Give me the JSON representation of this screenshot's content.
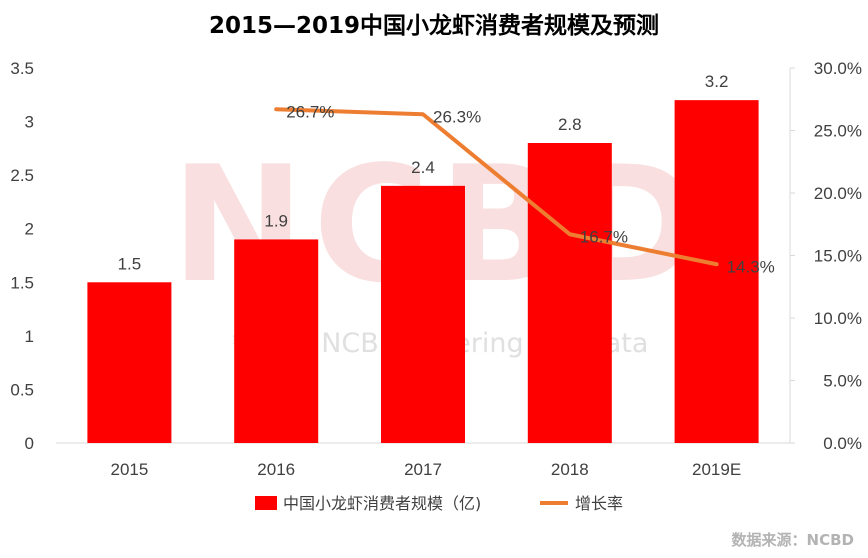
{
  "chart_data": {
    "type": "bar",
    "title": "2015—2019中国小龙虾消费者规模及预测",
    "categories": [
      "2015",
      "2016",
      "2017",
      "2018",
      "2019E"
    ],
    "series": [
      {
        "name": "中国小龙虾消费者规模（亿)",
        "type": "bar",
        "axis": "left",
        "values": [
          1.5,
          1.9,
          2.4,
          2.8,
          3.2
        ],
        "labels": [
          "1.5",
          "1.9",
          "2.4",
          "2.8",
          "3.2"
        ],
        "color": "#ff0000"
      },
      {
        "name": "增长率",
        "type": "line",
        "axis": "right",
        "values": [
          null,
          26.7,
          26.3,
          16.7,
          14.3
        ],
        "labels": [
          "",
          "26.7%",
          "26.3%",
          "16.7%",
          "14.3%"
        ],
        "color": "#ed7d31"
      }
    ],
    "y_left": {
      "ylim": [
        0,
        3.5
      ],
      "ticks": [
        "0",
        "0.5",
        "1",
        "1.5",
        "2",
        "2.5",
        "3",
        "3.5"
      ]
    },
    "y_right": {
      "ylim": [
        0,
        30
      ],
      "ticks": [
        "0.0%",
        "5.0%",
        "10.0%",
        "15.0%",
        "20.0%",
        "25.0%",
        "30.0%"
      ]
    },
    "grid": false,
    "legend_position": "bottom"
  },
  "watermark": {
    "text": "NCBD",
    "subtitle": "餐宝典 NCBD Catering Big Data"
  },
  "source": "数据来源：NCBD"
}
